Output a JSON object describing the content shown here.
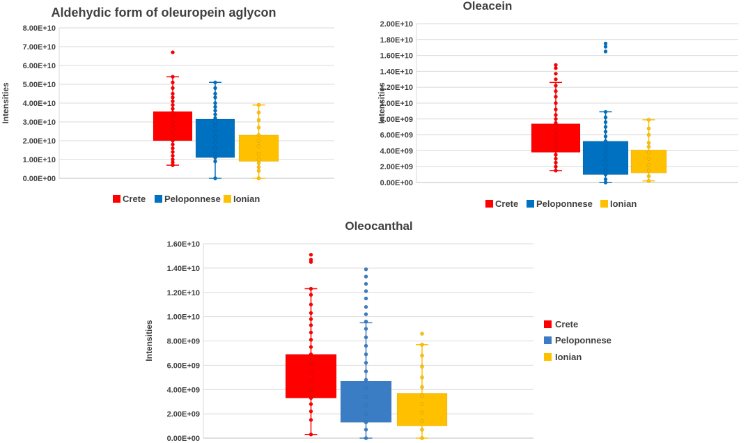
{
  "chart_data": [
    {
      "type": "box",
      "title": "Aldehydic form of oleuropein aglycon",
      "xlabel": "",
      "ylabel": "Intensities",
      "ylim": [
        0,
        80000000000
      ],
      "ytick_labels": [
        "0.00E+00",
        "1.00E+10",
        "2.00E+10",
        "3.00E+10",
        "4.00E+10",
        "5.00E+10",
        "6.00E+10",
        "7.00E+10",
        "8.00E+10"
      ],
      "legend_position": "bottom",
      "series": [
        {
          "name": "Crete",
          "color": "#ff0000",
          "min": 7000000000,
          "q1": 20000000000,
          "q3": 35500000000,
          "max": 54000000000,
          "points": [
            7000000000,
            8500000000,
            10000000000,
            12000000000,
            14000000000,
            16000000000,
            18000000000,
            20000000000,
            23000000000,
            26000000000,
            28000000000,
            30000000000,
            33000000000,
            35000000000,
            37000000000,
            39000000000,
            41000000000,
            43000000000,
            45000000000,
            48000000000,
            51000000000,
            54000000000,
            67000000000
          ]
        },
        {
          "name": "Peloponnese",
          "color": "#0070c0",
          "min": 0,
          "q1": 11000000000,
          "q3": 31500000000,
          "max": 51000000000,
          "points": [
            0,
            9000000000,
            11000000000,
            13000000000,
            16000000000,
            19000000000,
            22000000000,
            25000000000,
            28000000000,
            30000000000,
            32000000000,
            34000000000,
            36000000000,
            38000000000,
            40000000000,
            43000000000,
            45000000000,
            48000000000,
            51000000000
          ]
        },
        {
          "name": "Ionian",
          "color": "#ffc000",
          "min": 0,
          "q1": 9000000000,
          "q3": 23000000000,
          "max": 39000000000,
          "points": [
            0,
            4000000000,
            6000000000,
            8000000000,
            10000000000,
            13000000000,
            17000000000,
            20000000000,
            23000000000,
            27000000000,
            31000000000,
            35000000000,
            39000000000
          ]
        }
      ]
    },
    {
      "type": "box",
      "title": "Oleacein",
      "xlabel": "",
      "ylabel": "Intensities",
      "ylim": [
        0,
        20000000000
      ],
      "ytick_labels": [
        "0.00E+00",
        "2.00E+09",
        "4.00E+09",
        "6.00E+09",
        "8.00E+09",
        "1.00E+10",
        "1.20E+10",
        "1.40E+10",
        "1.60E+10",
        "1.80E+10",
        "2.00E+10"
      ],
      "legend_position": "bottom",
      "series": [
        {
          "name": "Crete",
          "color": "#ff0000",
          "min": 1500000000,
          "q1": 3800000000,
          "q3": 7400000000,
          "max": 12600000000,
          "points": [
            1500000000,
            2000000000,
            2500000000,
            3000000000,
            3500000000,
            4000000000,
            4600000000,
            5200000000,
            5800000000,
            6400000000,
            7000000000,
            7500000000,
            8000000000,
            8500000000,
            9200000000,
            10000000000,
            10800000000,
            11500000000,
            12200000000,
            13000000000,
            13700000000,
            14400000000,
            14800000000
          ]
        },
        {
          "name": "Peloponnese",
          "color": "#0070c0",
          "min": 0,
          "q1": 1000000000,
          "q3": 5200000000,
          "max": 8900000000,
          "points": [
            0,
            400000000,
            1000000000,
            1600000000,
            2200000000,
            2800000000,
            3400000000,
            4000000000,
            4600000000,
            5200000000,
            5800000000,
            6400000000,
            7000000000,
            7600000000,
            8200000000,
            8900000000,
            16500000000,
            17100000000,
            17500000000
          ]
        },
        {
          "name": "Ionian",
          "color": "#ffc000",
          "min": 200000000,
          "q1": 1200000000,
          "q3": 4100000000,
          "max": 7900000000,
          "points": [
            200000000,
            800000000,
            1500000000,
            2200000000,
            3000000000,
            3800000000,
            4500000000,
            5000000000,
            6000000000,
            6800000000,
            7900000000
          ]
        }
      ]
    },
    {
      "type": "box",
      "title": "Oleocanthal",
      "xlabel": "",
      "ylabel": "Intensities",
      "ylim": [
        0,
        16000000000
      ],
      "ytick_labels": [
        "0.00E+00",
        "2.00E+09",
        "4.00E+09",
        "6.00E+09",
        "8.00E+09",
        "1.00E+10",
        "1.20E+10",
        "1.40E+10",
        "1.60E+10"
      ],
      "legend_position": "right",
      "series": [
        {
          "name": "Crete",
          "color": "#ff0000",
          "min": 300000000,
          "q1": 3300000000,
          "q3": 6900000000,
          "max": 12300000000,
          "points": [
            300000000,
            1500000000,
            2200000000,
            2800000000,
            3300000000,
            4000000000,
            4700000000,
            5400000000,
            6100000000,
            6900000000,
            7500000000,
            8100000000,
            8700000000,
            9300000000,
            9800000000,
            10300000000,
            11000000000,
            11800000000,
            12300000000,
            14500000000,
            14700000000,
            15100000000
          ]
        },
        {
          "name": "Peloponnese",
          "color": "#3b7dc4",
          "min": 0,
          "q1": 1300000000,
          "q3": 4700000000,
          "max": 9500000000,
          "points": [
            0,
            700000000,
            1300000000,
            2000000000,
            2700000000,
            3400000000,
            4100000000,
            4800000000,
            5500000000,
            6200000000,
            6900000000,
            7600000000,
            8300000000,
            9000000000,
            9600000000,
            10200000000,
            10800000000,
            11500000000,
            12100000000,
            12700000000,
            13300000000,
            13900000000
          ]
        },
        {
          "name": "Ionian",
          "color": "#ffc000",
          "min": 0,
          "q1": 1000000000,
          "q3": 3700000000,
          "max": 7700000000,
          "points": [
            0,
            700000000,
            1400000000,
            2100000000,
            2800000000,
            3500000000,
            4200000000,
            5000000000,
            5900000000,
            6800000000,
            7700000000,
            8600000000
          ]
        }
      ]
    }
  ]
}
